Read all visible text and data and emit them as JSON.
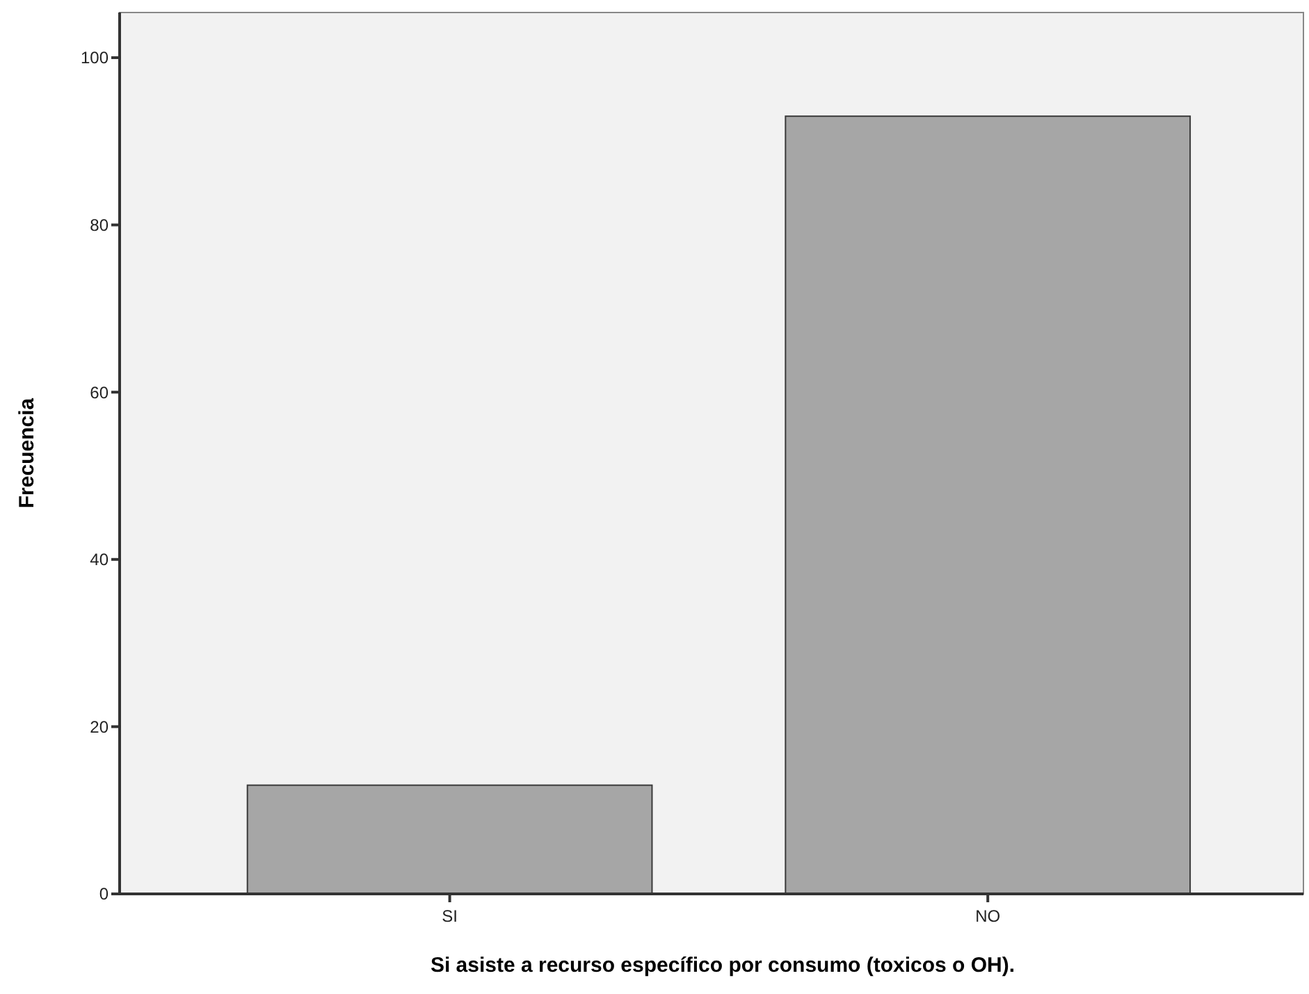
{
  "chart_data": {
    "type": "bar",
    "xlabel": "Si asiste a recurso específico por consumo (toxicos o OH).",
    "ylabel": "Frecuencia",
    "categories": [
      "SI",
      "NO"
    ],
    "values": [
      13,
      93
    ],
    "color": "#a6a6a6",
    "ylim": [
      0,
      105.4
    ],
    "yticks": [
      0,
      20,
      40,
      60,
      80,
      100
    ],
    "grid": false
  }
}
